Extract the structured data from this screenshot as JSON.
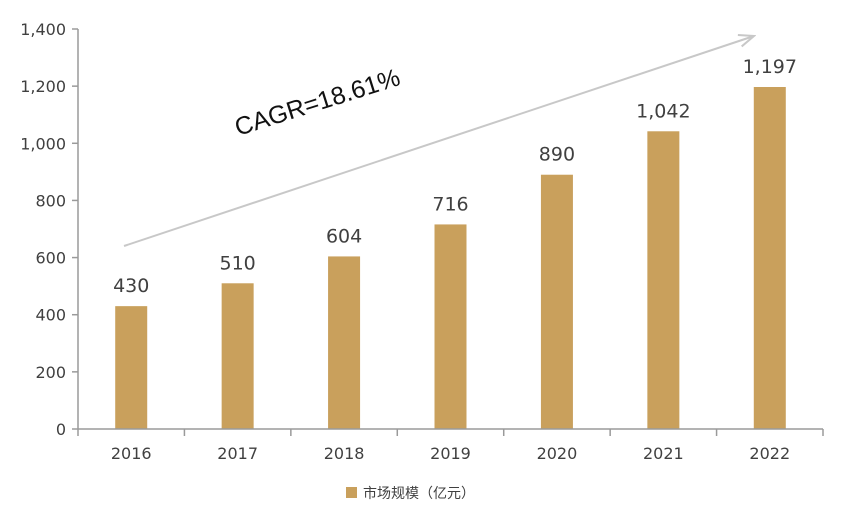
{
  "chart_data": {
    "type": "bar",
    "categories": [
      "2016",
      "2017",
      "2018",
      "2019",
      "2020",
      "2021",
      "2022"
    ],
    "values": [
      430,
      510,
      604,
      716,
      890,
      1042,
      1197
    ],
    "value_labels": [
      "430",
      "510",
      "604",
      "716",
      "890",
      "1,042",
      "1,197"
    ],
    "series": [
      {
        "name": "市场规模（亿元）",
        "values": [
          430,
          510,
          604,
          716,
          890,
          1042,
          1197
        ]
      }
    ],
    "ylim": [
      0,
      1400
    ],
    "yticks": [
      0,
      200,
      400,
      600,
      800,
      1000,
      1200,
      1400
    ],
    "ytick_labels": [
      "0",
      "200",
      "400",
      "600",
      "800",
      "1,000",
      "1,200",
      "1,400"
    ],
    "annotation": "CAGR=18.61%",
    "legend_position": "bottom",
    "grid": false,
    "bar_color": "#C9A05C",
    "arrow_color": "#C8C8C8",
    "axis_color": "#9A9A9A"
  }
}
